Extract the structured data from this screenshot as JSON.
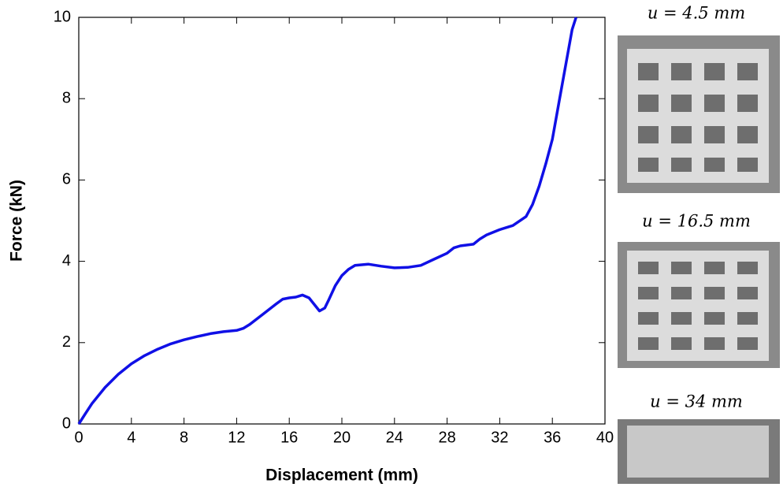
{
  "chart_data": {
    "type": "line",
    "x_label": "Displacement (mm)",
    "y_label": "Force (kN)",
    "x": [
      0,
      0.5,
      1,
      2,
      3,
      4,
      5,
      6,
      7,
      8,
      9,
      10,
      11,
      12,
      12.5,
      13,
      14,
      15,
      15.5,
      16,
      16.5,
      17,
      17.5,
      18,
      18.3,
      18.7,
      19,
      19.5,
      20,
      20.5,
      21,
      22,
      23,
      24,
      25,
      26,
      27,
      28,
      28.5,
      29,
      30,
      30.5,
      31,
      32,
      33,
      34,
      34.5,
      35,
      35.5,
      36,
      36.5,
      37,
      37.5,
      37.8
    ],
    "values": [
      0,
      0.25,
      0.5,
      0.9,
      1.22,
      1.48,
      1.68,
      1.84,
      1.97,
      2.07,
      2.15,
      2.22,
      2.27,
      2.3,
      2.35,
      2.45,
      2.7,
      2.95,
      3.07,
      3.1,
      3.12,
      3.17,
      3.1,
      2.9,
      2.78,
      2.85,
      3.05,
      3.4,
      3.65,
      3.8,
      3.9,
      3.93,
      3.88,
      3.84,
      3.85,
      3.9,
      4.05,
      4.2,
      4.33,
      4.38,
      4.42,
      4.55,
      4.65,
      4.78,
      4.88,
      5.1,
      5.4,
      5.85,
      6.4,
      7.0,
      7.9,
      8.8,
      9.7,
      10
    ],
    "color": "#1010e6",
    "xlim": [
      0,
      40
    ],
    "xticks": [
      0,
      4,
      8,
      12,
      16,
      20,
      24,
      28,
      32,
      36,
      40
    ],
    "ylim": [
      0,
      10
    ],
    "yticks": [
      0,
      2,
      4,
      6,
      8,
      10
    ],
    "annotations": [
      {
        "text": "u = 4.5 mm"
      },
      {
        "text": "u = 16.5 mm"
      },
      {
        "text": "u = 34 mm"
      }
    ]
  }
}
